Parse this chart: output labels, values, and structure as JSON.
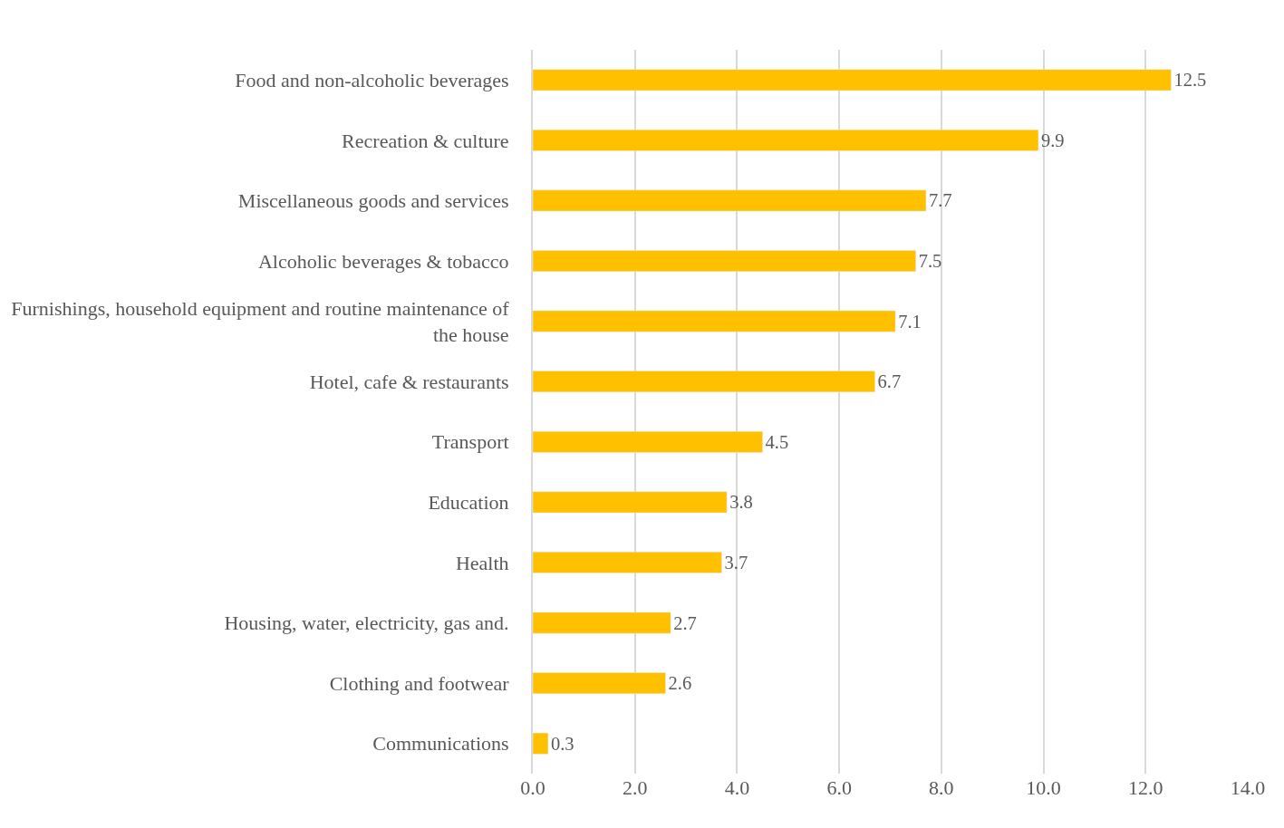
{
  "chart_data": {
    "type": "bar",
    "orientation": "horizontal",
    "categories": [
      "Food and non-alcoholic beverages",
      "Recreation & culture",
      "Miscellaneous goods and services",
      "Alcoholic beverages & tobacco",
      "Furnishings, household equipment and routine maintenance of the house",
      "Hotel, cafe & restaurants",
      "Transport",
      "Education",
      "Health",
      "Housing, water, electricity, gas and.",
      "Clothing and footwear",
      "Communications"
    ],
    "values": [
      12.5,
      9.9,
      7.7,
      7.5,
      7.1,
      6.7,
      4.5,
      3.8,
      3.7,
      2.7,
      2.6,
      0.3
    ],
    "color": "#ffc000",
    "xlim": [
      0,
      14
    ],
    "xticks": [
      {
        "value": 0,
        "label": "0.0"
      },
      {
        "value": 2,
        "label": "2.0"
      },
      {
        "value": 4,
        "label": "4.0"
      },
      {
        "value": 6,
        "label": "6.0"
      },
      {
        "value": 8,
        "label": "8.0"
      },
      {
        "value": 10,
        "label": "10.0"
      },
      {
        "value": 12,
        "label": "12.0"
      },
      {
        "value": 14,
        "label": "14.0"
      }
    ],
    "grid": "x",
    "data_labels": true
  }
}
